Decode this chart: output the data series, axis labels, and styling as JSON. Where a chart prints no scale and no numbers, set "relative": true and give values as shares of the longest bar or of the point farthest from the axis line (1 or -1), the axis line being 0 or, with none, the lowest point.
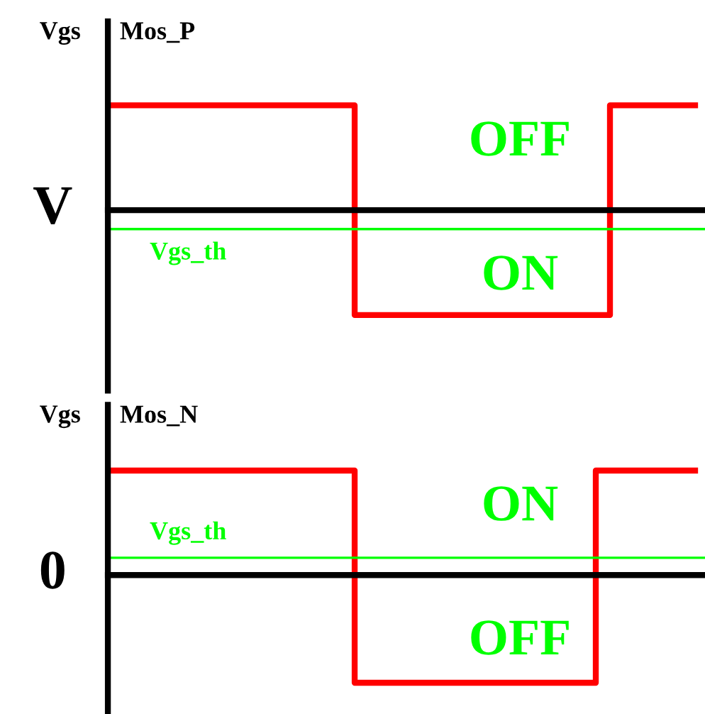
{
  "chart_data": [
    {
      "type": "step",
      "title": "Mos_P",
      "ylabel": "Vgs",
      "relative": true,
      "categories": [
        null,
        null,
        null,
        null,
        null,
        null,
        null,
        null,
        null,
        null,
        null,
        null,
        null,
        null,
        null,
        null,
        null,
        null,
        null,
        null,
        null,
        null,
        null,
        null,
        null,
        null,
        null,
        null,
        null,
        null,
        null,
        null,
        null,
        null,
        null,
        null,
        null,
        null,
        null,
        null,
        null,
        null
      ],
      "series": [
        {
          "color": "#ff0000",
          "values": [
            1,
            1,
            1,
            1,
            1,
            1,
            1,
            1,
            1,
            1,
            1,
            1,
            1,
            1,
            1,
            1,
            1,
            -1,
            -1,
            -1,
            -1,
            -1,
            -1,
            -1,
            -1,
            -1,
            -1,
            -1,
            -1,
            -1,
            -1,
            -1,
            -1,
            -1,
            -1,
            1,
            1,
            1,
            1,
            1,
            1,
            1
          ]
        }
      ],
      "ref_lines": [
        {
          "axis": "y",
          "value": -0.18,
          "label": "Vgs_th",
          "color": "#00ff00"
        }
      ],
      "annotations": [
        "V",
        "OFF",
        "ON"
      ]
    },
    {
      "type": "step",
      "title": "Mos_N",
      "ylabel": "Vgs",
      "relative": true,
      "categories": [
        null,
        null,
        null,
        null,
        null,
        null,
        null,
        null,
        null,
        null,
        null,
        null,
        null,
        null,
        null,
        null,
        null,
        null,
        null,
        null,
        null,
        null,
        null,
        null,
        null,
        null,
        null,
        null,
        null,
        null,
        null,
        null,
        null,
        null,
        null,
        null,
        null,
        null,
        null,
        null,
        null,
        null
      ],
      "series": [
        {
          "color": "#ff0000",
          "values": [
            0.97,
            0.97,
            0.97,
            0.97,
            0.97,
            0.97,
            0.97,
            0.97,
            0.97,
            0.97,
            0.97,
            0.97,
            0.97,
            0.97,
            0.97,
            0.97,
            0.97,
            -1,
            -1,
            -1,
            -1,
            -1,
            -1,
            -1,
            -1,
            -1,
            -1,
            -1,
            -1,
            -1,
            -1,
            -1,
            -1,
            -1,
            0.97,
            0.97,
            0.97,
            0.97,
            0.97,
            0.97,
            0.97,
            0.97
          ]
        }
      ],
      "ref_lines": [
        {
          "axis": "y",
          "value": 0.16,
          "label": "Vgs_th",
          "color": "#00ff00"
        }
      ],
      "annotations": [
        "0",
        "ON",
        "OFF"
      ]
    }
  ]
}
